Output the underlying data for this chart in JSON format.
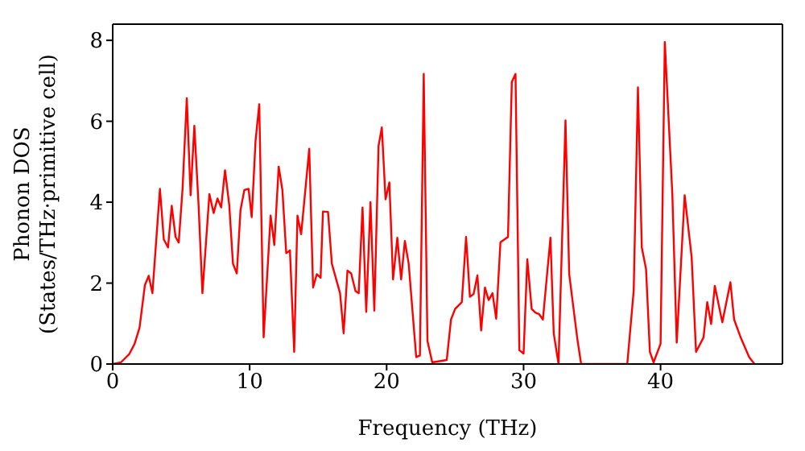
{
  "chart_data": {
    "type": "line",
    "xlabel": "Frequency (THz)",
    "ylabel": "Phonon DOS\n(States/THz·primitive cell)",
    "x": [
      0,
      0.6,
      1.2,
      1.6,
      1.96,
      2.35,
      2.63,
      2.9,
      3.45,
      3.73,
      4.04,
      4.31,
      4.59,
      4.82,
      5.1,
      5.41,
      5.69,
      5.96,
      6.27,
      6.55,
      7.06,
      7.37,
      7.65,
      7.92,
      8.2,
      8.51,
      8.78,
      9.06,
      9.33,
      9.61,
      9.92,
      10.15,
      10.43,
      10.7,
      11.02,
      11.53,
      11.8,
      12.12,
      12.39,
      12.67,
      12.94,
      13.25,
      13.49,
      13.76,
      14.35,
      14.63,
      14.9,
      15.18,
      15.35,
      15.72,
      16.0,
      16.6,
      16.86,
      17.14,
      17.41,
      17.73,
      17.96,
      18.24,
      18.51,
      18.82,
      19.1,
      19.41,
      19.65,
      19.92,
      20.2,
      20.47,
      20.78,
      21.06,
      21.33,
      21.61,
      22.16,
      22.43,
      22.71,
      22.98,
      23.33,
      24.39,
      24.7,
      25.0,
      25.49,
      25.8,
      26.08,
      26.35,
      26.63,
      26.9,
      27.18,
      27.45,
      27.73,
      28.0,
      28.31,
      28.86,
      29.14,
      29.41,
      29.69,
      30.0,
      30.27,
      30.59,
      30.86,
      31.14,
      31.41,
      31.96,
      32.2,
      32.55,
      33.06,
      33.33,
      33.92,
      34.2,
      37.57,
      38.04,
      38.35,
      38.63,
      38.94,
      39.22,
      39.49,
      40.0,
      40.31,
      40.86,
      41.18,
      41.76,
      42.27,
      42.59,
      43.14,
      43.41,
      43.69,
      43.96,
      44.51,
      45.1,
      45.37,
      45.88,
      46.47,
      46.86
    ],
    "series": [
      {
        "color": "#ff0000",
        "values": [
          0,
          0.04,
          0.24,
          0.5,
          0.9,
          1.95,
          2.18,
          1.75,
          4.33,
          3.08,
          2.88,
          3.91,
          3.14,
          3.0,
          4.33,
          6.57,
          4.17,
          5.89,
          3.93,
          1.75,
          4.2,
          3.73,
          4.09,
          3.87,
          4.79,
          3.93,
          2.48,
          2.24,
          3.8,
          4.3,
          4.33,
          3.63,
          5.52,
          6.42,
          0.66,
          3.67,
          2.94,
          4.88,
          4.3,
          2.74,
          2.81,
          0.3,
          3.67,
          3.21,
          5.32,
          1.89,
          2.22,
          2.13,
          3.77,
          3.76,
          2.48,
          1.75,
          0.76,
          2.31,
          2.24,
          1.8,
          1.75,
          3.87,
          1.29,
          4.0,
          1.32,
          5.39,
          5.85,
          4.07,
          4.49,
          2.09,
          3.12,
          2.09,
          3.04,
          2.48,
          0.17,
          0.21,
          7.17,
          0.57,
          0.04,
          0.1,
          1.1,
          1.36,
          1.53,
          3.14,
          1.66,
          1.73,
          2.19,
          0.83,
          1.89,
          1.58,
          1.75,
          1.12,
          3.01,
          3.14,
          6.97,
          7.17,
          0.34,
          0.26,
          2.59,
          1.36,
          1.27,
          1.23,
          1.1,
          3.12,
          0.76,
          0,
          6.02,
          2.22,
          0.63,
          0,
          0,
          1.82,
          6.84,
          2.88,
          2.35,
          0.3,
          0.04,
          0.5,
          7.96,
          4.2,
          0.53,
          4.17,
          2.64,
          0.3,
          0.66,
          1.53,
          0.99,
          1.93,
          1.03,
          2.02,
          1.1,
          0.63,
          0.17,
          0
        ]
      }
    ],
    "xlim": [
      0,
      48.9
    ],
    "ylim": [
      0,
      8.4
    ],
    "xticks": [
      0,
      10,
      20,
      30,
      40
    ],
    "yticks": [
      0,
      2,
      4,
      6,
      8
    ],
    "grid": false,
    "legend": false,
    "marker": "none",
    "line_style": "solid"
  }
}
